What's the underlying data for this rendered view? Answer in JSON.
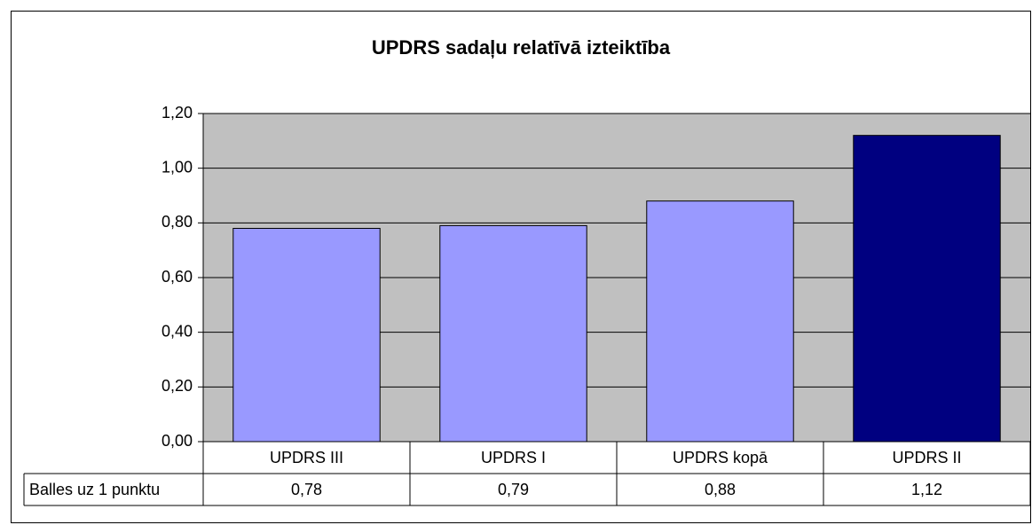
{
  "chart_data": {
    "type": "bar",
    "title": "UPDRS sadaļu relatīvā izteiktība",
    "categories": [
      "UPDRS III",
      "UPDRS I",
      "UPDRS kopā",
      "UPDRS II"
    ],
    "series": [
      {
        "name": "Balles uz 1 punktu",
        "values": [
          0.78,
          0.79,
          0.88,
          1.12
        ],
        "value_labels": [
          "0,78",
          "0,79",
          "0,88",
          "1,12"
        ],
        "colors": [
          "#9999ff",
          "#9999ff",
          "#9999ff",
          "#000080"
        ]
      }
    ],
    "ylim": [
      0,
      1.2
    ],
    "yticks": [
      {
        "value": 0,
        "label": "0,00"
      },
      {
        "value": 0.2,
        "label": "0,20"
      },
      {
        "value": 0.4,
        "label": "0,40"
      },
      {
        "value": 0.6,
        "label": "0,60"
      },
      {
        "value": 0.8,
        "label": "0,80"
      },
      {
        "value": 1.0,
        "label": "1,00"
      },
      {
        "value": 1.2,
        "label": "1,20"
      }
    ],
    "grid": true,
    "plot_background": "#c0c0c0"
  }
}
